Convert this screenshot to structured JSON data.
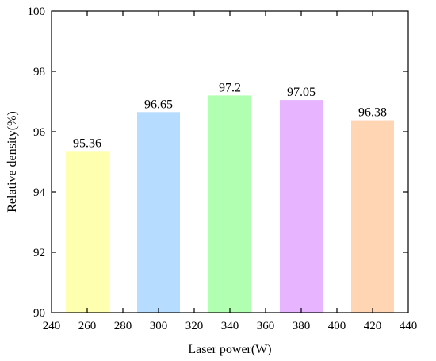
{
  "chart_data": {
    "type": "bar",
    "title": "",
    "xlabel": "Laser power(W)",
    "ylabel": "Relative density(%)",
    "x": [
      260,
      300,
      340,
      380,
      420
    ],
    "values": [
      95.36,
      96.65,
      97.2,
      97.05,
      96.38
    ],
    "data_labels": [
      "95.36",
      "96.65",
      "97.2",
      "97.05",
      "96.38"
    ],
    "colors": [
      "#ffffb0",
      "#b6dcff",
      "#b1ffb1",
      "#e7b5ff",
      "#ffd5b3"
    ],
    "xlim": [
      240,
      440
    ],
    "ylim": [
      90,
      100
    ],
    "xticks": [
      240,
      260,
      280,
      300,
      320,
      340,
      360,
      380,
      400,
      420,
      440
    ],
    "yticks": [
      90,
      92,
      94,
      96,
      98,
      100
    ],
    "bar_width": 24,
    "grid": false,
    "legend": "none"
  }
}
